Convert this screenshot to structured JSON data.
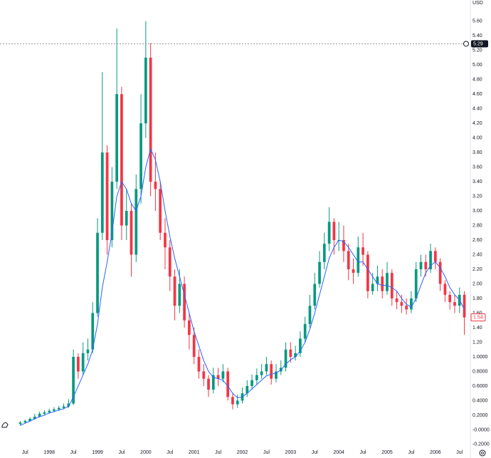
{
  "chart_data": {
    "type": "candlestick",
    "currency": "USD",
    "x": [
      1997.4,
      1997.5,
      1997.6,
      1997.7,
      1997.8,
      1997.9,
      1998.0,
      1998.1,
      1998.2,
      1998.3,
      1998.4,
      1998.5,
      1998.6,
      1998.7,
      1998.8,
      1998.9,
      1999.0,
      1999.1,
      1999.2,
      1999.3,
      1999.4,
      1999.5,
      1999.6,
      1999.7,
      1999.8,
      1999.9,
      2000.0,
      2000.1,
      2000.2,
      2000.3,
      2000.4,
      2000.5,
      2000.6,
      2000.7,
      2000.8,
      2000.9,
      2001.0,
      2001.1,
      2001.2,
      2001.3,
      2001.4,
      2001.5,
      2001.6,
      2001.7,
      2001.8,
      2001.9,
      2002.0,
      2002.1,
      2002.2,
      2002.3,
      2002.4,
      2002.5,
      2002.6,
      2002.7,
      2002.8,
      2002.9,
      2003.0,
      2003.1,
      2003.2,
      2003.3,
      2003.4,
      2003.5,
      2003.6,
      2003.7,
      2003.8,
      2003.9,
      2004.0,
      2004.1,
      2004.2,
      2004.3,
      2004.4,
      2004.5,
      2004.6,
      2004.7,
      2004.8,
      2004.9,
      2005.0,
      2005.1,
      2005.2,
      2005.3,
      2005.4,
      2005.5,
      2005.6,
      2005.7,
      2005.8,
      2005.9,
      2006.0,
      2006.1,
      2006.2,
      2006.3,
      2006.4,
      2006.5,
      2006.6
    ],
    "open": [
      0.08,
      0.1,
      0.12,
      0.15,
      0.18,
      0.22,
      0.24,
      0.26,
      0.28,
      0.3,
      0.32,
      0.36,
      1.0,
      0.8,
      1.05,
      1.1,
      1.6,
      2.7,
      3.8,
      2.6,
      3.4,
      4.6,
      2.8,
      3.0,
      2.4,
      3.3,
      4.2,
      5.1,
      3.4,
      3.3,
      2.7,
      2.5,
      2.1,
      1.7,
      2.0,
      1.5,
      1.3,
      1.0,
      0.8,
      0.7,
      0.55,
      0.75,
      0.7,
      0.8,
      0.45,
      0.35,
      0.4,
      0.5,
      0.6,
      0.68,
      0.75,
      0.8,
      0.9,
      0.7,
      0.8,
      0.85,
      1.1,
      1.0,
      1.05,
      1.25,
      1.45,
      1.7,
      2.0,
      2.3,
      2.55,
      2.85,
      2.6,
      2.6,
      2.45,
      2.2,
      2.15,
      2.5,
      2.4,
      1.9,
      2.0,
      2.1,
      1.9,
      2.15,
      1.8,
      1.75,
      1.7,
      1.65,
      1.8,
      2.2,
      2.3,
      2.2,
      2.45,
      2.3,
      2.0,
      1.85,
      1.75,
      1.7,
      1.85
    ],
    "high": [
      0.12,
      0.14,
      0.17,
      0.22,
      0.25,
      0.27,
      0.29,
      0.31,
      0.33,
      0.36,
      0.42,
      1.1,
      1.05,
      1.2,
      1.25,
      1.75,
      2.9,
      4.9,
      3.9,
      3.6,
      5.5,
      4.7,
      3.3,
      3.1,
      3.5,
      4.6,
      5.6,
      5.3,
      3.8,
      3.4,
      2.9,
      2.6,
      2.2,
      2.2,
      2.1,
      1.6,
      1.4,
      1.1,
      0.9,
      0.75,
      0.85,
      0.85,
      0.9,
      0.85,
      0.5,
      0.48,
      0.58,
      0.68,
      0.76,
      0.84,
      0.9,
      1.0,
      0.95,
      0.9,
      0.95,
      1.2,
      1.2,
      1.15,
      1.35,
      1.55,
      1.85,
      2.15,
      2.45,
      2.7,
      3.05,
      2.9,
      2.85,
      2.8,
      2.55,
      2.35,
      2.65,
      2.7,
      2.45,
      2.15,
      2.25,
      2.2,
      2.3,
      2.2,
      1.9,
      1.85,
      1.8,
      1.9,
      2.3,
      2.4,
      2.4,
      2.55,
      2.5,
      2.35,
      2.05,
      1.9,
      1.85,
      1.95,
      1.9
    ],
    "low": [
      0.06,
      0.09,
      0.11,
      0.14,
      0.17,
      0.2,
      0.22,
      0.24,
      0.26,
      0.28,
      0.3,
      0.34,
      0.7,
      0.75,
      0.95,
      1.05,
      1.55,
      2.6,
      2.4,
      2.5,
      3.3,
      2.6,
      2.6,
      2.1,
      2.3,
      3.1,
      4.0,
      3.2,
      3.0,
      2.6,
      2.2,
      1.9,
      1.5,
      1.6,
      1.4,
      1.1,
      0.9,
      0.7,
      0.6,
      0.45,
      0.5,
      0.6,
      0.65,
      0.4,
      0.28,
      0.3,
      0.36,
      0.45,
      0.55,
      0.62,
      0.7,
      0.75,
      0.62,
      0.65,
      0.75,
      0.8,
      0.92,
      0.95,
      1.0,
      1.2,
      1.4,
      1.65,
      1.95,
      2.2,
      2.45,
      2.4,
      2.45,
      2.3,
      2.05,
      2.0,
      2.1,
      2.25,
      1.8,
      1.85,
      1.9,
      1.8,
      1.85,
      1.7,
      1.65,
      1.6,
      1.58,
      1.6,
      1.75,
      2.1,
      2.1,
      2.15,
      2.2,
      1.9,
      1.75,
      1.65,
      1.6,
      1.6,
      1.3
    ],
    "close": [
      0.1,
      0.12,
      0.15,
      0.18,
      0.22,
      0.24,
      0.26,
      0.28,
      0.3,
      0.32,
      0.36,
      1.0,
      0.8,
      1.05,
      1.1,
      1.6,
      2.7,
      3.8,
      2.6,
      3.4,
      4.6,
      2.8,
      3.0,
      2.4,
      3.3,
      4.2,
      5.1,
      3.4,
      3.3,
      2.7,
      2.5,
      2.1,
      1.7,
      2.0,
      1.5,
      1.3,
      1.0,
      0.8,
      0.7,
      0.55,
      0.75,
      0.7,
      0.8,
      0.45,
      0.35,
      0.4,
      0.5,
      0.6,
      0.68,
      0.75,
      0.8,
      0.9,
      0.7,
      0.8,
      0.85,
      1.1,
      1.0,
      1.05,
      1.25,
      1.45,
      1.7,
      2.0,
      2.3,
      2.55,
      2.85,
      2.6,
      2.6,
      2.45,
      2.2,
      2.15,
      2.5,
      2.4,
      1.9,
      2.0,
      2.1,
      1.9,
      2.15,
      1.8,
      1.75,
      1.7,
      1.65,
      1.8,
      2.2,
      2.3,
      2.2,
      2.45,
      2.3,
      2.0,
      1.85,
      1.75,
      1.7,
      1.85,
      1.54
    ],
    "up_color": "#089981",
    "down_color": "#f23645",
    "moving_average": {
      "color": "#2962ff",
      "values": [
        0.06,
        0.09,
        0.12,
        0.15,
        0.18,
        0.2,
        0.23,
        0.25,
        0.27,
        0.29,
        0.32,
        0.45,
        0.6,
        0.75,
        0.9,
        1.1,
        1.45,
        1.95,
        2.3,
        2.7,
        3.2,
        3.4,
        3.3,
        3.1,
        3.0,
        3.2,
        3.6,
        3.85,
        3.7,
        3.4,
        3.0,
        2.65,
        2.35,
        2.1,
        1.85,
        1.6,
        1.35,
        1.15,
        0.95,
        0.8,
        0.72,
        0.7,
        0.68,
        0.6,
        0.5,
        0.44,
        0.45,
        0.5,
        0.56,
        0.62,
        0.68,
        0.74,
        0.76,
        0.78,
        0.82,
        0.9,
        0.96,
        1.0,
        1.08,
        1.2,
        1.38,
        1.6,
        1.85,
        2.1,
        2.35,
        2.5,
        2.6,
        2.58,
        2.5,
        2.4,
        2.3,
        2.3,
        2.2,
        2.1,
        2.0,
        1.98,
        1.98,
        1.95,
        1.9,
        1.8,
        1.72,
        1.68,
        1.8,
        1.98,
        2.15,
        2.25,
        2.3,
        2.22,
        2.1,
        1.95,
        1.85,
        1.78,
        1.65
      ]
    },
    "price_line": 5.29,
    "last_price": 1.54,
    "xlim": [
      1996.98,
      2006.71
    ],
    "xticks": [
      {
        "value": 1997.5,
        "label": "Jul"
      },
      1998,
      {
        "value": 1998.5,
        "label": "Jul"
      },
      1999,
      {
        "value": 1999.5,
        "label": "Jul"
      },
      2000,
      {
        "value": 2000.5,
        "label": "Jul"
      },
      2001,
      {
        "value": 2001.5,
        "label": "Jul"
      },
      2002,
      {
        "value": 2002.5,
        "label": "Jul"
      },
      2003,
      {
        "value": 2003.5,
        "label": "Jul"
      },
      2004,
      {
        "value": 2004.5,
        "label": "Jul"
      },
      2005,
      {
        "value": 2005.5,
        "label": "Jul"
      },
      2006,
      {
        "value": 2006.5,
        "label": "Jul"
      }
    ],
    "ylim": [
      -0.24,
      5.89
    ],
    "yticks": [
      {
        "value": -0.2,
        "label": "-0.2000"
      },
      {
        "value": 0,
        "label": "-0.0000"
      },
      {
        "value": 0.2,
        "label": "0.2000"
      },
      {
        "value": 0.4,
        "label": "0.4000"
      },
      {
        "value": 0.6,
        "label": "0.6000"
      },
      {
        "value": 0.8,
        "label": "0.8000"
      },
      {
        "value": 1,
        "label": "1.0000"
      },
      {
        "value": 1.2,
        "label": "1.20"
      },
      {
        "value": 1.4,
        "label": "1.40"
      },
      {
        "value": 1.6,
        "label": "1.60"
      },
      {
        "value": 1.8,
        "label": "1.80"
      },
      {
        "value": 2,
        "label": "2.00"
      },
      {
        "value": 2.2,
        "label": "2.20"
      },
      {
        "value": 2.4,
        "label": "2.40"
      },
      {
        "value": 2.6,
        "label": "2.60"
      },
      {
        "value": 2.8,
        "label": "2.80"
      },
      {
        "value": 3,
        "label": "3.00"
      },
      {
        "value": 3.2,
        "label": "3.20"
      },
      {
        "value": 3.4,
        "label": "3.40"
      },
      {
        "value": 3.6,
        "label": "3.60"
      },
      {
        "value": 3.8,
        "label": "3.80"
      },
      {
        "value": 4,
        "label": "4.00"
      },
      {
        "value": 4.2,
        "label": "4.20"
      },
      {
        "value": 4.4,
        "label": "4.40"
      },
      {
        "value": 4.6,
        "label": "4.60"
      },
      {
        "value": 4.8,
        "label": "4.80"
      },
      {
        "value": 5,
        "label": "5.00"
      },
      {
        "value": 5.2,
        "label": "5.20"
      },
      {
        "value": 5.4,
        "label": "5.40"
      },
      {
        "value": 5.6,
        "label": "5.60"
      }
    ],
    "grid": false
  }
}
